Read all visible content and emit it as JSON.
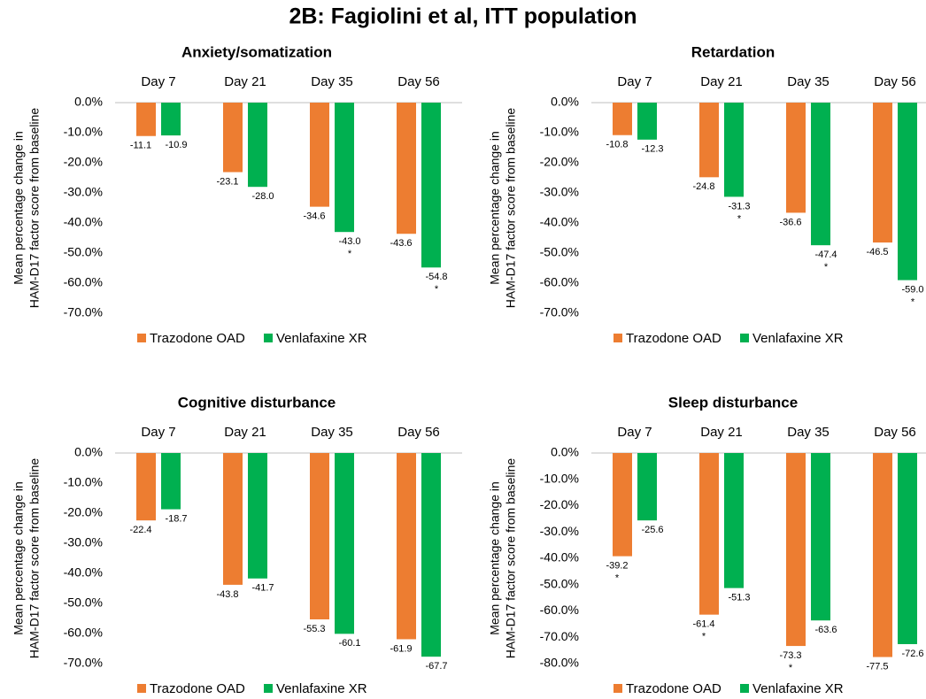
{
  "title": "2B: Fagiolini et al, ITT population",
  "chart_data": [
    {
      "type": "bar",
      "title": "Anxiety/somatization",
      "ylabel": [
        "Mean percentage change in",
        "HAM-D17 factor score from baseline"
      ],
      "categories": [
        "Day 7",
        "Day 21",
        "Day 35",
        "Day 56"
      ],
      "series": [
        {
          "name": "Trazodone OAD",
          "color": "#ed7d31",
          "values": [
            -11.1,
            -23.1,
            -34.6,
            -43.6
          ],
          "value_labels": [
            "-11.1",
            "-23.1",
            "-34.6",
            "-43.6"
          ],
          "markers": [
            null,
            null,
            null,
            null
          ]
        },
        {
          "name": "Venlafaxine XR",
          "color": "#00b050",
          "values": [
            -10.9,
            -28.0,
            -43.0,
            -54.8
          ],
          "value_labels": [
            "-10.9",
            "-28.0",
            "-43.0",
            "-54.8"
          ],
          "markers": [
            null,
            null,
            "*",
            "*"
          ]
        }
      ],
      "ylim": [
        -70,
        0
      ],
      "yticks": [
        {
          "value": 0,
          "label": "0.0%"
        },
        {
          "value": -10,
          "label": "-10.0%"
        },
        {
          "value": -20,
          "label": "-20.0%"
        },
        {
          "value": -30,
          "label": "-30.0%"
        },
        {
          "value": -40,
          "label": "-40.0%"
        },
        {
          "value": -50,
          "label": "-50.0%"
        },
        {
          "value": -60,
          "label": "-60.0%"
        },
        {
          "value": -70,
          "label": "-70.0%"
        }
      ],
      "legend": "bottom"
    },
    {
      "type": "bar",
      "title": "Retardation",
      "ylabel": [
        "Mean percentage change in",
        "HAM-D17 factor score from baseline"
      ],
      "categories": [
        "Day 7",
        "Day 21",
        "Day 35",
        "Day 56"
      ],
      "series": [
        {
          "name": "Trazodone OAD",
          "color": "#ed7d31",
          "values": [
            -10.8,
            -24.8,
            -36.6,
            -46.5
          ],
          "value_labels": [
            "-10.8",
            "-24.8",
            "-36.6",
            "-46.5"
          ],
          "markers": [
            null,
            null,
            null,
            null
          ]
        },
        {
          "name": "Venlafaxine XR",
          "color": "#00b050",
          "values": [
            -12.3,
            -31.3,
            -47.4,
            -59.0
          ],
          "value_labels": [
            "-12.3",
            "-31.3",
            "-47.4",
            "-59.0"
          ],
          "markers": [
            null,
            "*",
            "*",
            "*"
          ]
        }
      ],
      "ylim": [
        -70,
        0
      ],
      "yticks": [
        {
          "value": 0,
          "label": "0.0%"
        },
        {
          "value": -10,
          "label": "-10.0%"
        },
        {
          "value": -20,
          "label": "-20.0%"
        },
        {
          "value": -30,
          "label": "-30.0%"
        },
        {
          "value": -40,
          "label": "-40.0%"
        },
        {
          "value": -50,
          "label": "-50.0%"
        },
        {
          "value": -60,
          "label": "-60.0%"
        },
        {
          "value": -70,
          "label": "-70.0%"
        }
      ],
      "legend": "bottom"
    },
    {
      "type": "bar",
      "title": "Cognitive disturbance",
      "ylabel": [
        "Mean percentage change in",
        "HAM-D17 factor score from baseline"
      ],
      "categories": [
        "Day 7",
        "Day 21",
        "Day 35",
        "Day 56"
      ],
      "series": [
        {
          "name": "Trazodone OAD",
          "color": "#ed7d31",
          "values": [
            -22.4,
            -43.8,
            -55.3,
            -61.9
          ],
          "value_labels": [
            "-22.4",
            "-43.8",
            "-55.3",
            "-61.9"
          ],
          "markers": [
            null,
            null,
            null,
            null
          ]
        },
        {
          "name": "Venlafaxine XR",
          "color": "#00b050",
          "values": [
            -18.7,
            -41.7,
            -60.1,
            -67.7
          ],
          "value_labels": [
            "-18.7",
            "-41.7",
            "-60.1",
            "-67.7"
          ],
          "markers": [
            null,
            null,
            null,
            null
          ]
        }
      ],
      "ylim": [
        -70,
        0
      ],
      "yticks": [
        {
          "value": 0,
          "label": "0.0%"
        },
        {
          "value": -10,
          "label": "-10.0%"
        },
        {
          "value": -20,
          "label": "-20.0%"
        },
        {
          "value": -30,
          "label": "-30.0%"
        },
        {
          "value": -40,
          "label": "-40.0%"
        },
        {
          "value": -50,
          "label": "-50.0%"
        },
        {
          "value": -60,
          "label": "-60.0%"
        },
        {
          "value": -70,
          "label": "-70.0%"
        }
      ],
      "legend": "bottom"
    },
    {
      "type": "bar",
      "title": "Sleep disturbance",
      "ylabel": [
        "Mean percentage change in",
        "HAM-D17 factor score from baseline"
      ],
      "categories": [
        "Day 7",
        "Day 21",
        "Day 35",
        "Day 56"
      ],
      "series": [
        {
          "name": "Trazodone OAD",
          "color": "#ed7d31",
          "values": [
            -39.2,
            -61.4,
            -73.3,
            -77.5
          ],
          "value_labels": [
            "-39.2",
            "-61.4",
            "-73.3",
            "-77.5"
          ],
          "markers": [
            "*",
            "*",
            "*",
            null
          ]
        },
        {
          "name": "Venlafaxine XR",
          "color": "#00b050",
          "values": [
            -25.6,
            -51.3,
            -63.6,
            -72.6
          ],
          "value_labels": [
            "-25.6",
            "-51.3",
            "-63.6",
            "-72.6"
          ],
          "markers": [
            null,
            null,
            null,
            null
          ]
        }
      ],
      "ylim": [
        -80,
        0
      ],
      "yticks": [
        {
          "value": 0,
          "label": "0.0%"
        },
        {
          "value": -10,
          "label": "-10.0%"
        },
        {
          "value": -20,
          "label": "-20.0%"
        },
        {
          "value": -30,
          "label": "-30.0%"
        },
        {
          "value": -40,
          "label": "-40.0%"
        },
        {
          "value": -50,
          "label": "-50.0%"
        },
        {
          "value": -60,
          "label": "-60.0%"
        },
        {
          "value": -70,
          "label": "-70.0%"
        },
        {
          "value": -80,
          "label": "-80.0%"
        }
      ],
      "legend": "bottom"
    }
  ]
}
